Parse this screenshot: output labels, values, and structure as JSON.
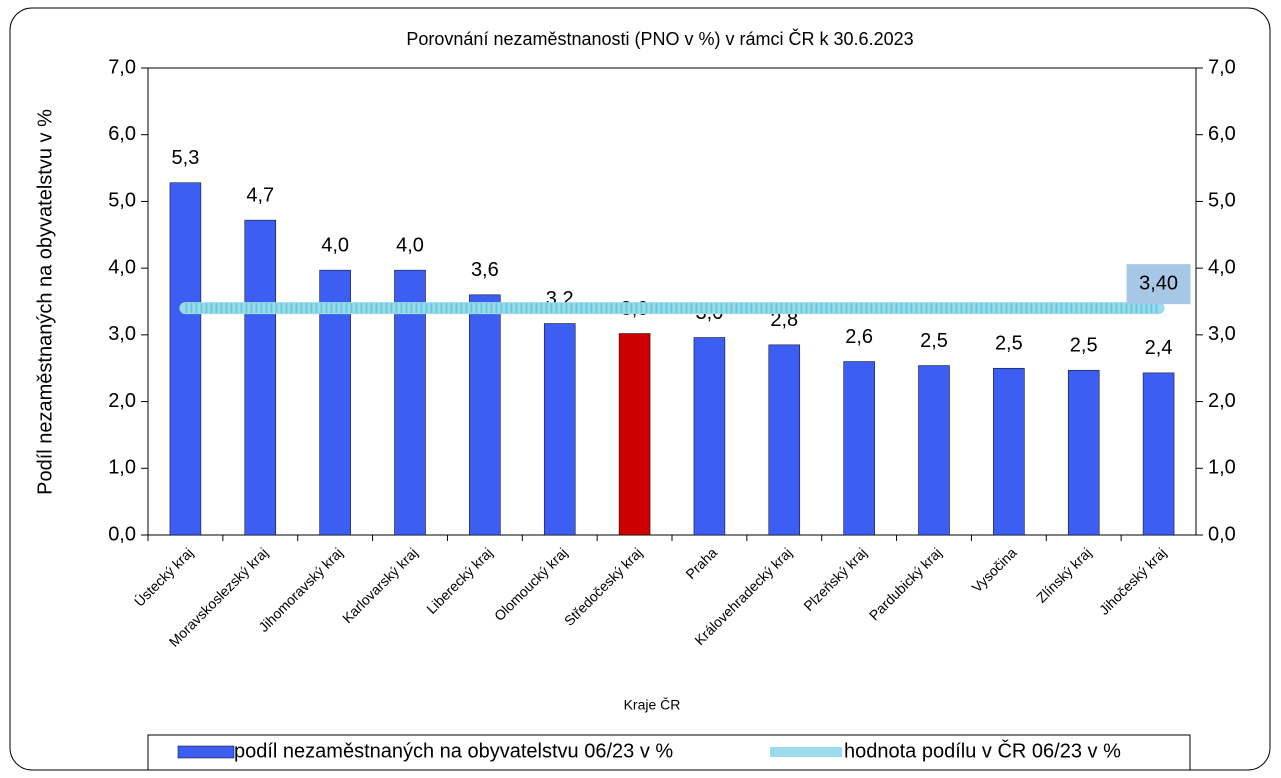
{
  "chart_data": {
    "type": "bar",
    "title": "Porovnání nezaměstnanosti (PNO v %) v rámci ČR k 30.6.2023",
    "ylabel": "Podíl nezaměstnaných na obyvatelstvu v %",
    "xlabel": "Kraje ČR",
    "categories": [
      "Ústecký kraj",
      "Moravskoslezský kraj",
      "Jihomoravský kraj",
      "Karlovarský kraj",
      "Liberecký kraj",
      "Olomoucký kraj",
      "Středočeský kraj",
      "Praha",
      "Královehradecký kraj",
      "Plzeňský kraj",
      "Pardubický kraj",
      "Vysočina",
      "Zlínský kraj",
      "Jihočeský kraj"
    ],
    "series": [
      {
        "name": "podíl nezaměstnaných na obyvatelstvu 06/23 v %",
        "type": "bar",
        "color": "#3d5ef2",
        "colors": [
          "#3d5ef2",
          "#3d5ef2",
          "#3d5ef2",
          "#3d5ef2",
          "#3d5ef2",
          "#3d5ef2",
          "#cc0000",
          "#3d5ef2",
          "#3d5ef2",
          "#3d5ef2",
          "#3d5ef2",
          "#3d5ef2",
          "#3d5ef2",
          "#3d5ef2"
        ],
        "values": [
          5.28,
          4.72,
          3.97,
          3.97,
          3.6,
          3.17,
          3.02,
          2.96,
          2.85,
          2.6,
          2.54,
          2.5,
          2.47,
          2.43
        ],
        "value_labels": [
          "5,3",
          "4,7",
          "4,0",
          "4,0",
          "3,6",
          "3,2",
          "3,0",
          "3,0",
          "2,8",
          "2,6",
          "2,5",
          "2,5",
          "2,5",
          "2,4"
        ]
      },
      {
        "name": "hodnota podílu v ČR 06/23 v %",
        "type": "line",
        "color": "#9adcec",
        "values": [
          3.4,
          3.4,
          3.4,
          3.4,
          3.4,
          3.4,
          3.4,
          3.4,
          3.4,
          3.4,
          3.4,
          3.4,
          3.4,
          3.4
        ],
        "value_labels": [
          null,
          null,
          null,
          null,
          null,
          null,
          null,
          null,
          null,
          null,
          null,
          null,
          null,
          "3,40"
        ]
      }
    ],
    "ylim": [
      0,
      7
    ],
    "yticks": [
      {
        "value": 0,
        "label": "0,0"
      },
      {
        "value": 1,
        "label": "1,0"
      },
      {
        "value": 2,
        "label": "2,0"
      },
      {
        "value": 3,
        "label": "3,0"
      },
      {
        "value": 4,
        "label": "4,0"
      },
      {
        "value": 5,
        "label": "5,0"
      },
      {
        "value": 6,
        "label": "6,0"
      },
      {
        "value": 7,
        "label": "7,0"
      }
    ],
    "y2lim": [
      0,
      7
    ],
    "y2ticks": [
      {
        "value": 0,
        "label": "0,0"
      },
      {
        "value": 1,
        "label": "1,0"
      },
      {
        "value": 2,
        "label": "2,0"
      },
      {
        "value": 3,
        "label": "3,0"
      },
      {
        "value": 4,
        "label": "4,0"
      },
      {
        "value": 5,
        "label": "5,0"
      },
      {
        "value": 6,
        "label": "6,0"
      },
      {
        "value": 7,
        "label": "7,0"
      }
    ],
    "grid": false
  }
}
